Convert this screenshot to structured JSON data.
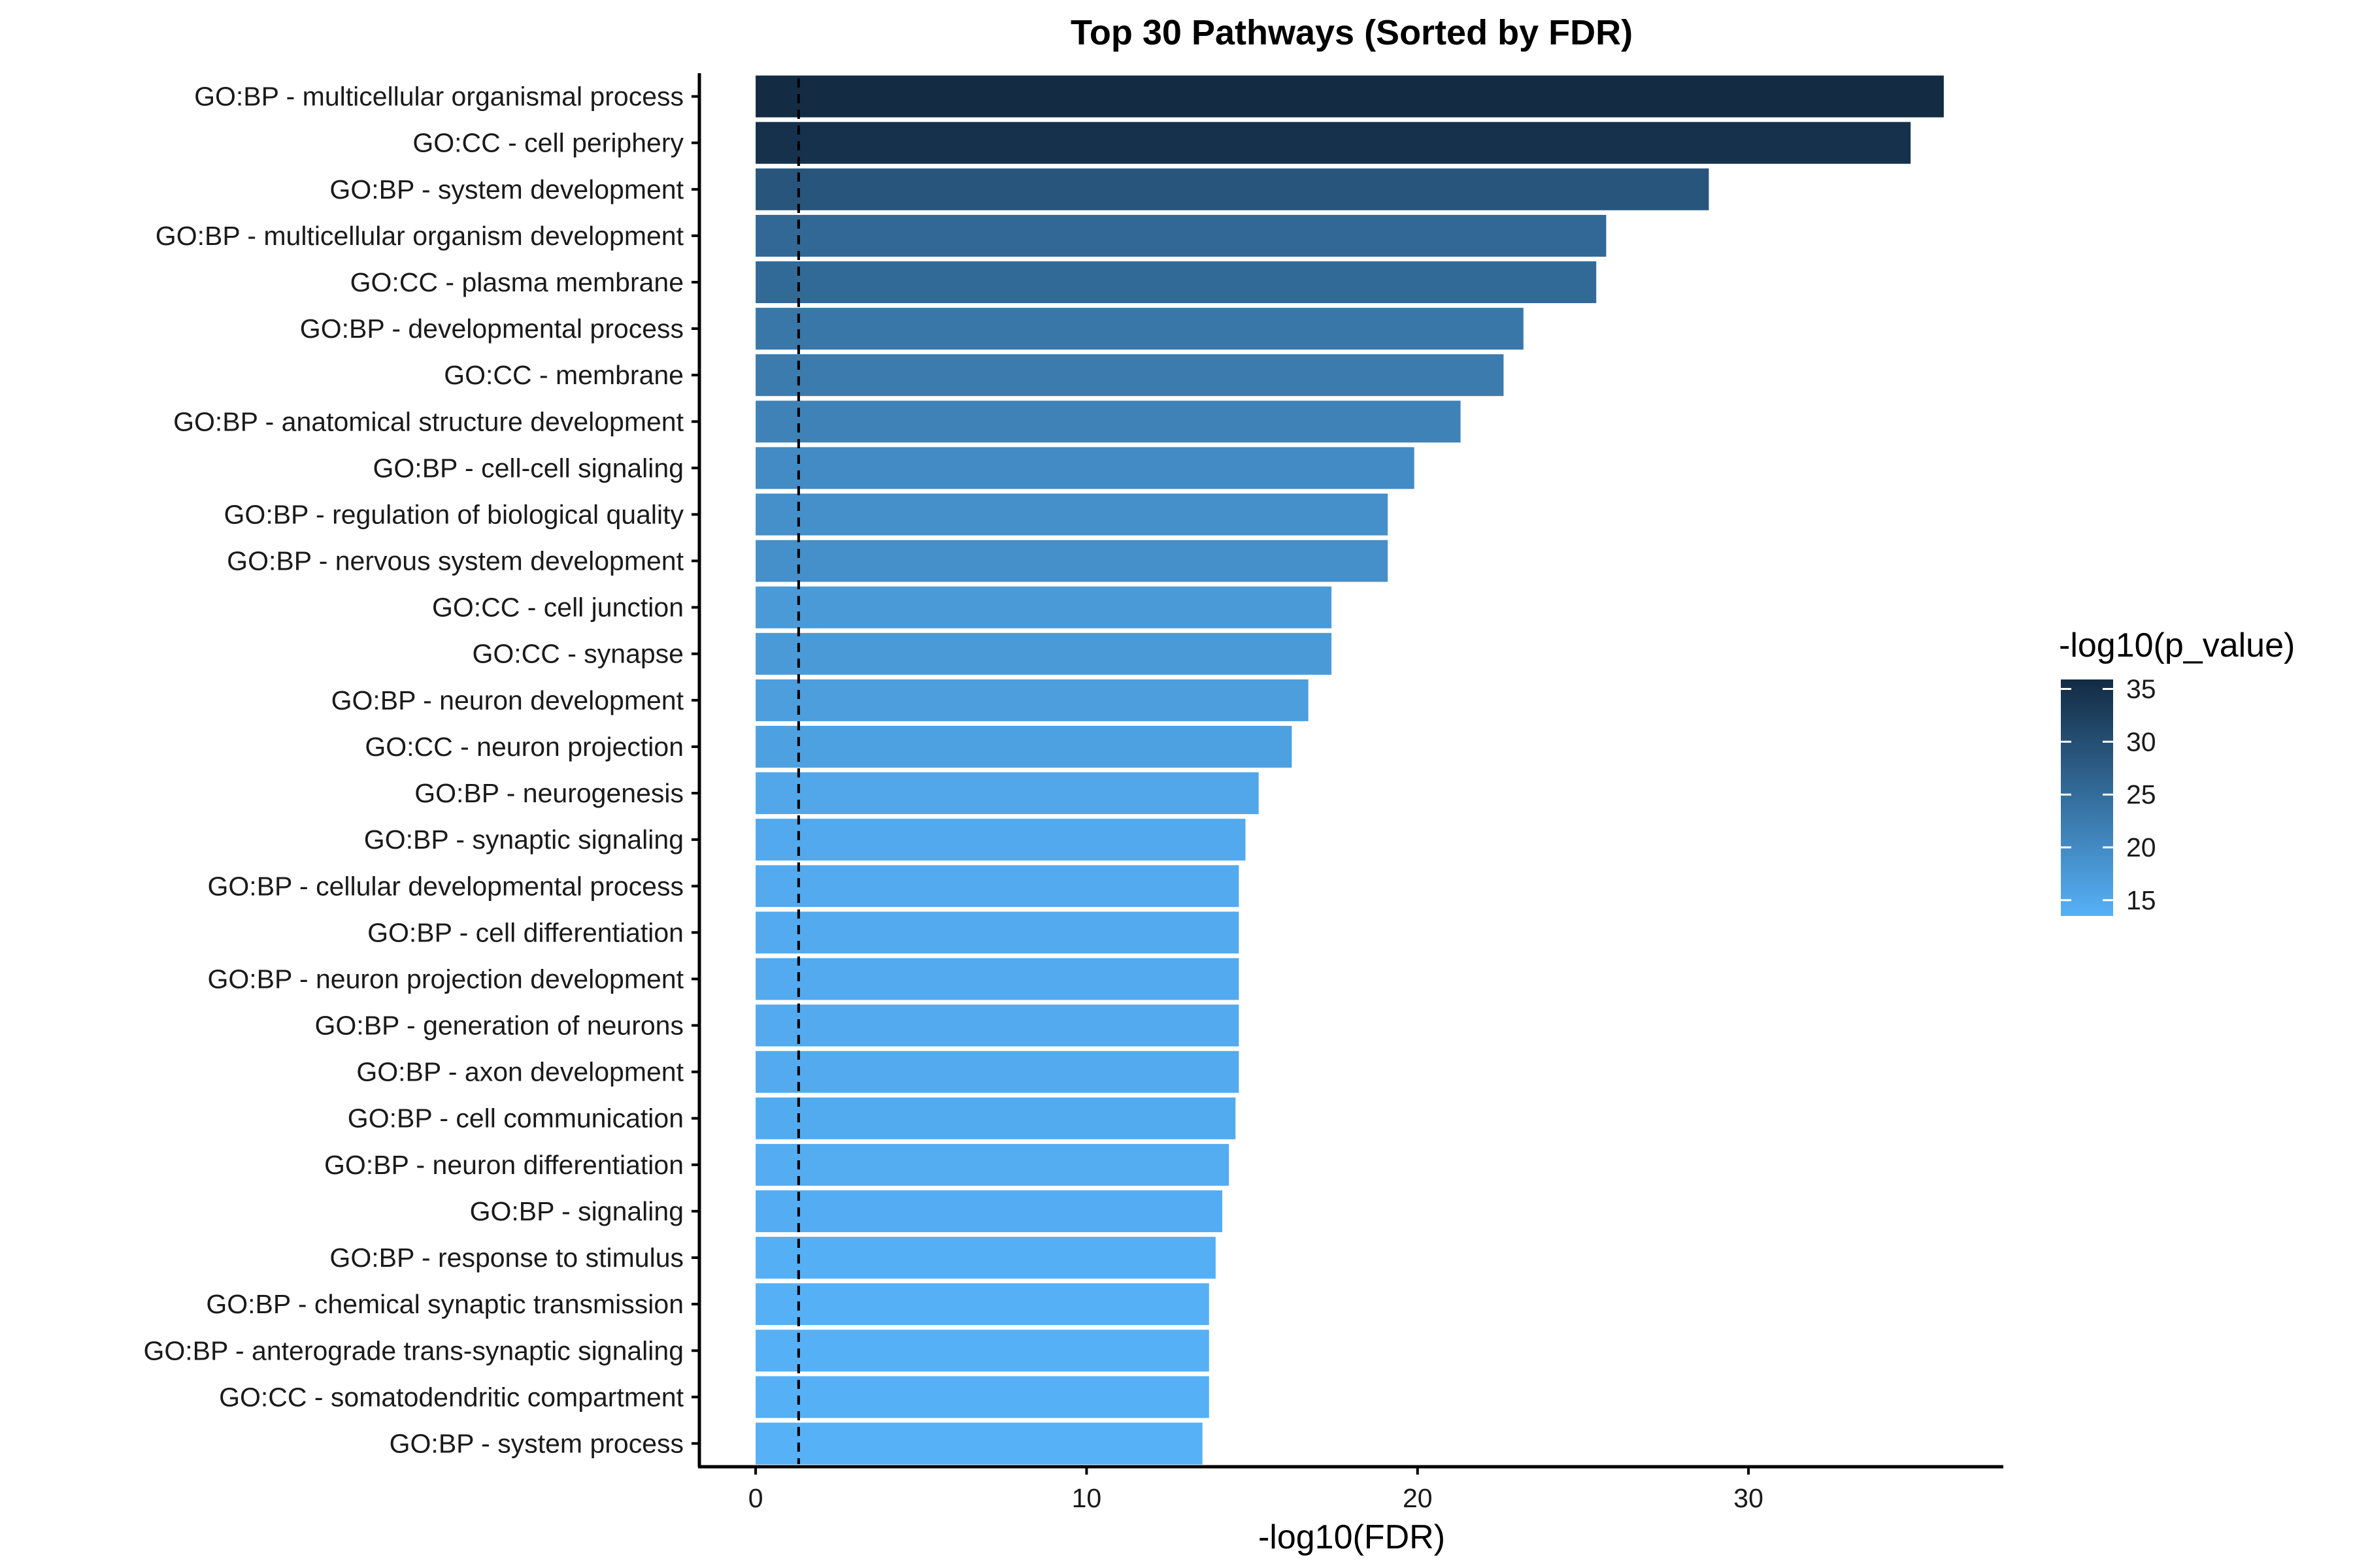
{
  "chart_data": {
    "type": "bar",
    "orientation": "horizontal",
    "title": "Top 30 Pathways (Sorted by FDR)",
    "xlabel": "-log10(FDR)",
    "ylabel": "",
    "xlim": [
      -1.7,
      37.7
    ],
    "xticks": [
      0,
      10,
      20,
      30
    ],
    "grid": false,
    "reference_line": {
      "x": 1.3,
      "style": "dashed"
    },
    "categories": [
      "GO:BP - multicellular organismal process",
      "GO:CC - cell periphery",
      "GO:BP - system development",
      "GO:BP - multicellular organism development",
      "GO:CC - plasma membrane",
      "GO:BP - developmental process",
      "GO:CC - membrane",
      "GO:BP - anatomical structure development",
      "GO:BP - cell-cell signaling",
      "GO:BP - regulation of biological quality",
      "GO:BP - nervous system development",
      "GO:CC - cell junction",
      "GO:CC - synapse",
      "GO:BP - neuron development",
      "GO:CC - neuron projection",
      "GO:BP - neurogenesis",
      "GO:BP - synaptic signaling",
      "GO:BP - cellular developmental process",
      "GO:BP - cell differentiation",
      "GO:BP - neuron projection development",
      "GO:BP - generation of neurons",
      "GO:BP - axon development",
      "GO:BP - cell communication",
      "GO:BP - neuron differentiation",
      "GO:BP - signaling",
      "GO:BP - response to stimulus",
      "GO:BP - chemical synaptic transmission",
      "GO:BP - anterograde trans-synaptic signaling",
      "GO:CC - somatodendritic compartment",
      "GO:BP - system process"
    ],
    "values": [
      35.9,
      34.9,
      28.8,
      25.7,
      25.4,
      23.2,
      22.6,
      21.3,
      19.9,
      19.1,
      19.1,
      17.4,
      17.4,
      16.7,
      16.2,
      15.2,
      14.8,
      14.6,
      14.6,
      14.6,
      14.6,
      14.6,
      14.5,
      14.3,
      14.1,
      13.9,
      13.7,
      13.7,
      13.7,
      13.5
    ],
    "color_values": [
      35.9,
      34.9,
      28.8,
      25.7,
      25.4,
      23.2,
      22.6,
      21.3,
      19.9,
      19.1,
      19.1,
      17.4,
      17.4,
      16.7,
      16.2,
      15.2,
      14.8,
      14.6,
      14.6,
      14.6,
      14.6,
      14.6,
      14.5,
      14.3,
      14.1,
      13.9,
      13.7,
      13.7,
      13.7,
      13.5
    ],
    "legend": {
      "title": "-log10(p_value)",
      "position": "right",
      "ticks": [
        15,
        20,
        25,
        30,
        35
      ],
      "range": [
        13.5,
        35.9
      ],
      "color_low": "#56B1F7",
      "color_high": "#132B43"
    },
    "colors": {
      "reference_line": "#000000",
      "axis": "#000000",
      "background": "#ffffff"
    }
  }
}
